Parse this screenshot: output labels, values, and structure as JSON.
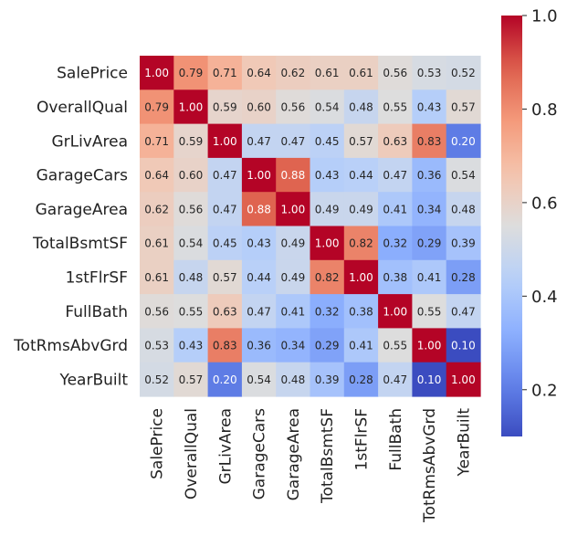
{
  "chart_data": {
    "type": "heatmap",
    "title": "",
    "colormap": "coolwarm",
    "labels": [
      "SalePrice",
      "OverallQual",
      "GrLivArea",
      "GarageCars",
      "GarageArea",
      "TotalBsmtSF",
      "1stFlrSF",
      "FullBath",
      "TotRmsAbvGrd",
      "YearBuilt"
    ],
    "matrix": [
      [
        1.0,
        0.79,
        0.71,
        0.64,
        0.62,
        0.61,
        0.61,
        0.56,
        0.53,
        0.52
      ],
      [
        0.79,
        1.0,
        0.59,
        0.6,
        0.56,
        0.54,
        0.48,
        0.55,
        0.43,
        0.57
      ],
      [
        0.71,
        0.59,
        1.0,
        0.47,
        0.47,
        0.45,
        0.57,
        0.63,
        0.83,
        0.2
      ],
      [
        0.64,
        0.6,
        0.47,
        1.0,
        0.88,
        0.43,
        0.44,
        0.47,
        0.36,
        0.54
      ],
      [
        0.62,
        0.56,
        0.47,
        0.88,
        1.0,
        0.49,
        0.49,
        0.41,
        0.34,
        0.48
      ],
      [
        0.61,
        0.54,
        0.45,
        0.43,
        0.49,
        1.0,
        0.82,
        0.32,
        0.29,
        0.39
      ],
      [
        0.61,
        0.48,
        0.57,
        0.44,
        0.49,
        0.82,
        1.0,
        0.38,
        0.41,
        0.28
      ],
      [
        0.56,
        0.55,
        0.63,
        0.47,
        0.41,
        0.32,
        0.38,
        1.0,
        0.55,
        0.47
      ],
      [
        0.53,
        0.43,
        0.83,
        0.36,
        0.34,
        0.29,
        0.41,
        0.55,
        1.0,
        0.1
      ],
      [
        0.52,
        0.57,
        0.2,
        0.54,
        0.48,
        0.39,
        0.28,
        0.47,
        0.1,
        1.0
      ]
    ],
    "annotation_format": "0.00",
    "colorbar": {
      "vmin": 0.1,
      "vmax": 1.0,
      "ticks": [
        0.2,
        0.4,
        0.6,
        0.8,
        1.0
      ],
      "tick_labels": [
        "0.2",
        "0.4",
        "0.6",
        "0.8",
        "1.0"
      ]
    }
  }
}
